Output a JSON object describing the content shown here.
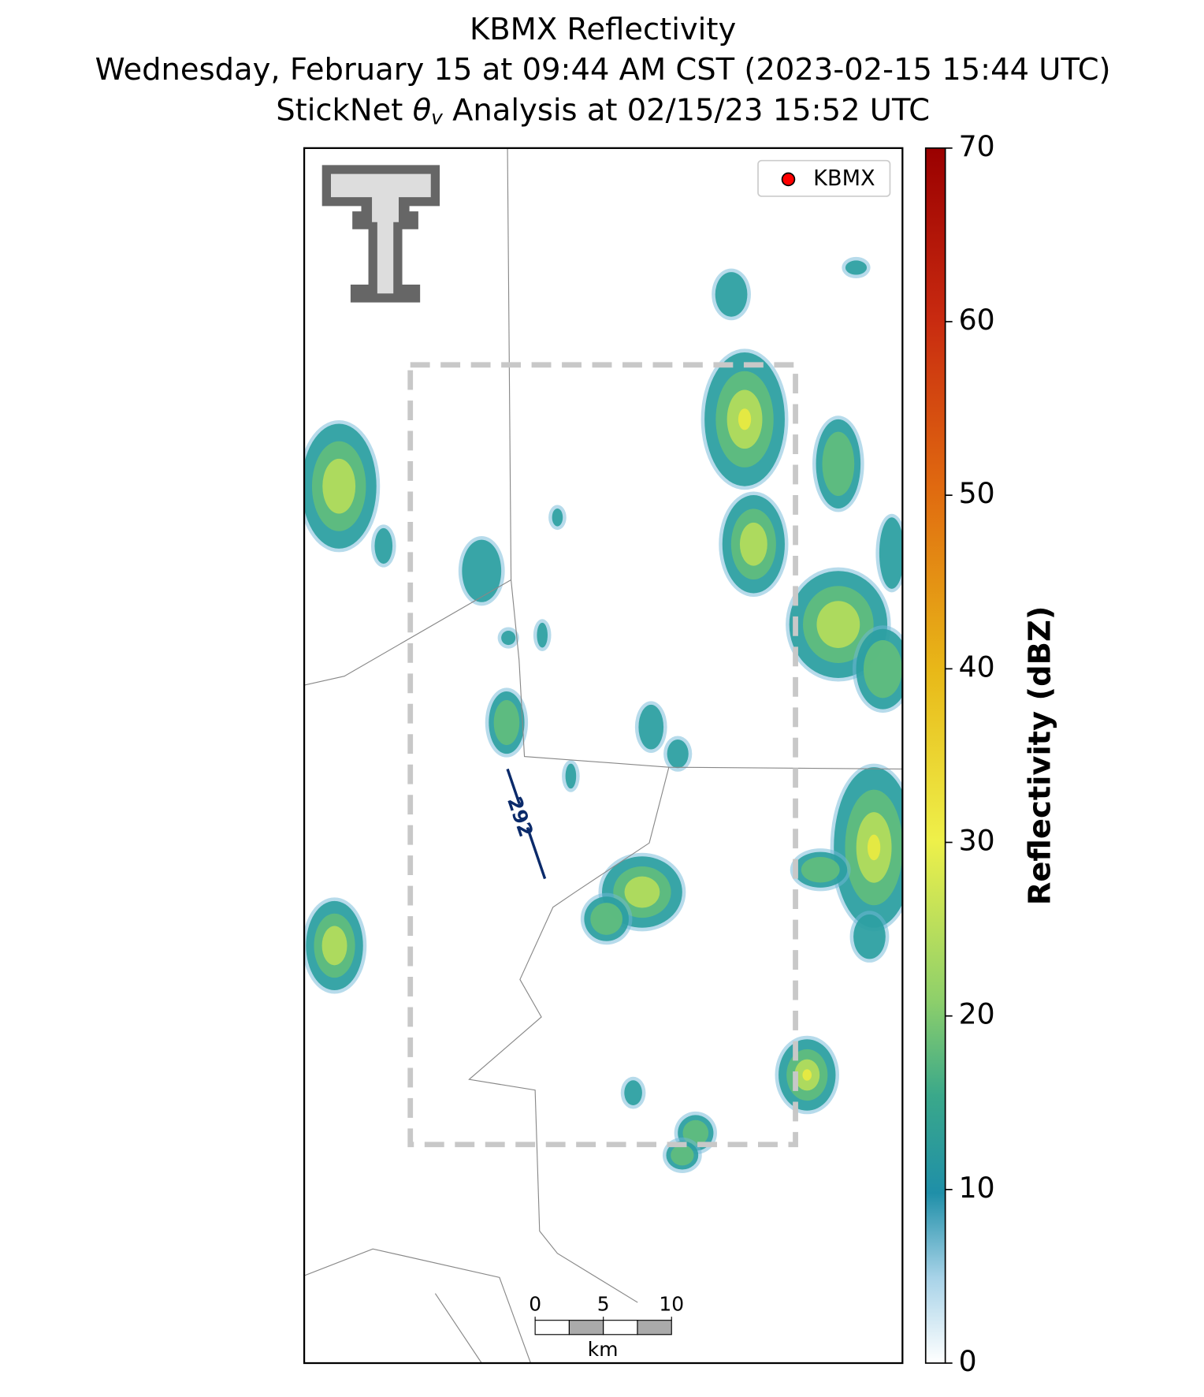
{
  "title": {
    "line1": "KBMX Reflectivity",
    "line2": "Wednesday, February 15 at 09:44 AM CST (2023-02-15 15:44 UTC)",
    "line3": [
      "StickNet ",
      "θ",
      "v",
      " Analysis at 02/15/23 15:52 UTC"
    ]
  },
  "legend": {
    "label": "KBMX",
    "color": "#ff0000"
  },
  "contour": {
    "label": "292"
  },
  "colorbar": {
    "label": "Reflectivity (dBZ)",
    "lim": [
      0,
      70
    ],
    "ticks": [
      0,
      10,
      20,
      30,
      40,
      50,
      60,
      70
    ]
  },
  "scale_bar": {
    "ticks": [
      0,
      5,
      10
    ],
    "unit": "km"
  }
}
